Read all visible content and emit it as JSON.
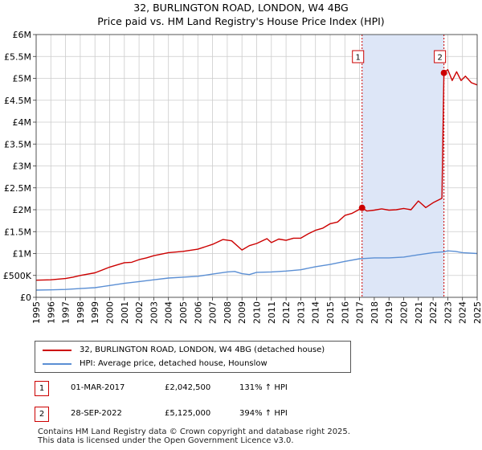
{
  "title": "32, BURLINGTON ROAD, LONDON, W4 4BG",
  "subtitle": "Price paid vs. HM Land Registry's House Price Index (HPI)",
  "colors": {
    "property_line": "#cc0000",
    "hpi_line": "#5b8fd4",
    "shade": "#dde6f7",
    "grid": "#cccccc",
    "marker_border": "#cc0000"
  },
  "chart_data": {
    "type": "line",
    "title": "32, BURLINGTON ROAD, LONDON, W4 4BG",
    "subtitle": "Price paid vs. HM Land Registry's House Price Index (HPI)",
    "xlim": [
      1995,
      2025
    ],
    "ylim": [
      0,
      6000000
    ],
    "yticks": [
      0,
      500000,
      1000000,
      1500000,
      2000000,
      2500000,
      3000000,
      3500000,
      4000000,
      4500000,
      5000000,
      5500000,
      6000000
    ],
    "ytick_labels": [
      "£0",
      "£500K",
      "£1M",
      "£1.5M",
      "£2M",
      "£2.5M",
      "£3M",
      "£3.5M",
      "£4M",
      "£4.5M",
      "£5M",
      "£5.5M",
      "£6M"
    ],
    "xticks": [
      1995,
      1996,
      1997,
      1998,
      1999,
      2000,
      2001,
      2002,
      2003,
      2004,
      2005,
      2006,
      2007,
      2008,
      2009,
      2010,
      2011,
      2012,
      2013,
      2014,
      2015,
      2016,
      2017,
      2018,
      2019,
      2020,
      2021,
      2022,
      2023,
      2024,
      2025
    ],
    "xtick_labels": [
      "1995",
      "1996",
      "1997",
      "1998",
      "1999",
      "2000",
      "2001",
      "2002",
      "2003",
      "2004",
      "2005",
      "2006",
      "2007",
      "2008",
      "2009",
      "2010",
      "2011",
      "2012",
      "2013",
      "2014",
      "2015",
      "2016",
      "2017",
      "2018",
      "2019",
      "2020",
      "2021",
      "2022",
      "2023",
      "2024",
      "2025"
    ],
    "shaded_range": [
      2017.17,
      2022.74
    ],
    "series": [
      {
        "name": "32, BURLINGTON ROAD, LONDON, W4 4BG (detached house)",
        "color": "#cc0000",
        "x": [
          1995,
          1996,
          1997,
          1997.5,
          1998,
          1999,
          2000,
          2001,
          2001.5,
          2002,
          2002.5,
          2003,
          2004,
          2005,
          2006,
          2007,
          2007.7,
          2008.3,
          2009,
          2009.5,
          2010,
          2010.7,
          2011,
          2011.5,
          2012,
          2012.5,
          2013,
          2013.5,
          2014,
          2014.5,
          2015,
          2015.5,
          2016,
          2016.5,
          2017.17,
          2017.5,
          2018,
          2018.5,
          2019,
          2019.5,
          2020,
          2020.5,
          2021,
          2021.5,
          2022,
          2022.6,
          2022.74,
          2023.0,
          2023.3,
          2023.6,
          2023.9,
          2024.2,
          2024.6,
          2025
        ],
        "y": [
          390000,
          400000,
          430000,
          460000,
          500000,
          560000,
          690000,
          790000,
          800000,
          860000,
          900000,
          950000,
          1020000,
          1050000,
          1100000,
          1210000,
          1320000,
          1290000,
          1080000,
          1180000,
          1230000,
          1340000,
          1250000,
          1330000,
          1300000,
          1350000,
          1350000,
          1450000,
          1530000,
          1580000,
          1680000,
          1720000,
          1870000,
          1920000,
          2042500,
          1970000,
          1990000,
          2020000,
          1990000,
          2000000,
          2030000,
          2000000,
          2200000,
          2050000,
          2160000,
          2260000,
          5125000,
          5200000,
          4950000,
          5150000,
          4950000,
          5050000,
          4900000,
          4850000
        ]
      },
      {
        "name": "HPI: Average price, detached house, Hounslow",
        "color": "#5b8fd4",
        "x": [
          1995,
          1996,
          1997,
          1998,
          1999,
          2000,
          2001,
          2002,
          2003,
          2004,
          2005,
          2006,
          2007,
          2008,
          2008.5,
          2009,
          2009.5,
          2010,
          2011,
          2012,
          2013,
          2014,
          2015,
          2016,
          2017,
          2017.17,
          2018,
          2019,
          2020,
          2021,
          2022,
          2022.74,
          2023,
          2023.5,
          2024,
          2025
        ],
        "y": [
          165000,
          170000,
          180000,
          200000,
          220000,
          270000,
          320000,
          360000,
          400000,
          440000,
          460000,
          480000,
          530000,
          580000,
          590000,
          540000,
          520000,
          570000,
          580000,
          600000,
          630000,
          700000,
          750000,
          820000,
          880000,
          884000,
          900000,
          900000,
          920000,
          970000,
          1020000,
          1040000,
          1060000,
          1050000,
          1020000,
          1000000
        ]
      }
    ],
    "annotations": [
      {
        "label": "1",
        "x": 2017.17,
        "y": 2042500
      },
      {
        "label": "2",
        "x": 2022.74,
        "y": 5125000
      }
    ]
  },
  "legend": {
    "property": "32, BURLINGTON ROAD, LONDON, W4 4BG (detached house)",
    "hpi": "HPI: Average price, detached house, Hounslow"
  },
  "transactions": [
    {
      "marker": "1",
      "date": "01-MAR-2017",
      "price": "£2,042,500",
      "hpi_change": "131% ↑ HPI"
    },
    {
      "marker": "2",
      "date": "28-SEP-2022",
      "price": "£5,125,000",
      "hpi_change": "394% ↑ HPI"
    }
  ],
  "footer": {
    "line1": "Contains HM Land Registry data © Crown copyright and database right 2025.",
    "line2": "This data is licensed under the Open Government Licence v3.0."
  }
}
